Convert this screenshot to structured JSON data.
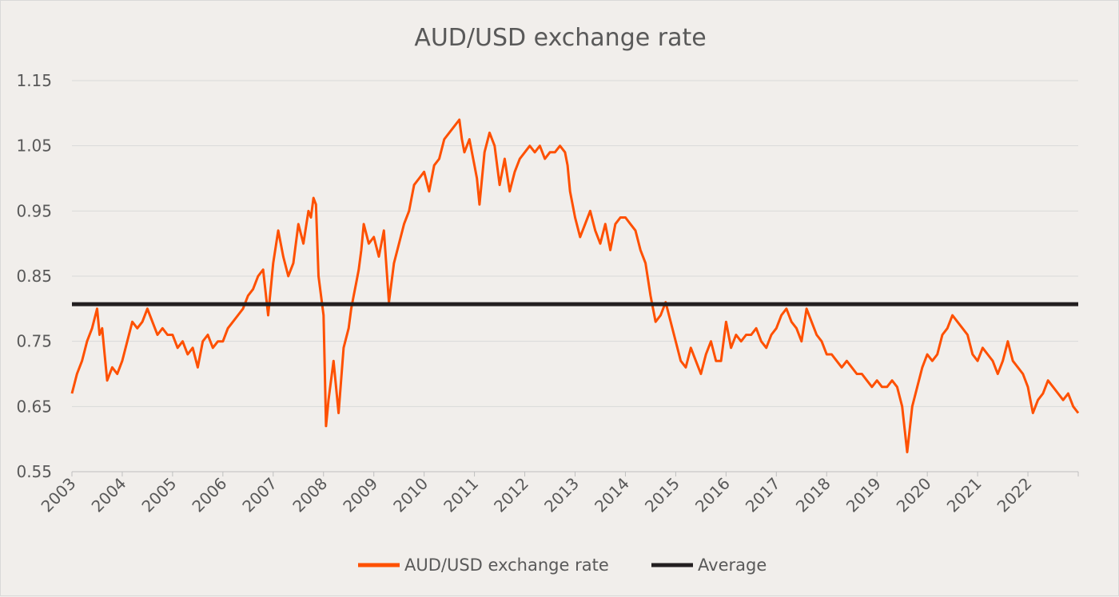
{
  "chart_data": {
    "type": "line",
    "title": "AUD/USD exchange rate",
    "xlabel": "",
    "ylabel": "",
    "ylim": [
      0.55,
      1.15
    ],
    "xlim": [
      2003,
      2023
    ],
    "y_ticks": [
      "0.55",
      "0.65",
      "0.75",
      "0.85",
      "0.95",
      "1.05",
      "1.15"
    ],
    "x_ticks": [
      "2003",
      "2004",
      "2005",
      "2006",
      "2007",
      "2008",
      "2009",
      "2010",
      "2011",
      "2012",
      "2013",
      "2014",
      "2015",
      "2016",
      "2017",
      "2018",
      "2019",
      "2020",
      "2021",
      "2022"
    ],
    "grid": true,
    "legend_position": "bottom",
    "series": [
      {
        "name": "AUD/USD exchange rate",
        "color": "#fe5000",
        "x": [
          2003.0,
          2003.1,
          2003.2,
          2003.3,
          2003.4,
          2003.5,
          2003.55,
          2003.6,
          2003.65,
          2003.7,
          2003.8,
          2003.9,
          2004.0,
          2004.1,
          2004.2,
          2004.3,
          2004.4,
          2004.5,
          2004.6,
          2004.7,
          2004.8,
          2004.9,
          2005.0,
          2005.1,
          2005.2,
          2005.3,
          2005.4,
          2005.5,
          2005.6,
          2005.7,
          2005.8,
          2005.9,
          2006.0,
          2006.1,
          2006.2,
          2006.3,
          2006.4,
          2006.5,
          2006.6,
          2006.7,
          2006.8,
          2006.9,
          2007.0,
          2007.1,
          2007.2,
          2007.3,
          2007.4,
          2007.5,
          2007.6,
          2007.7,
          2007.75,
          2007.8,
          2007.85,
          2007.9,
          2008.0,
          2008.05,
          2008.1,
          2008.2,
          2008.3,
          2008.4,
          2008.5,
          2008.55,
          2008.6,
          2008.65,
          2008.7,
          2008.75,
          2008.8,
          2008.9,
          2009.0,
          2009.1,
          2009.2,
          2009.3,
          2009.4,
          2009.5,
          2009.6,
          2009.7,
          2009.75,
          2009.8,
          2009.9,
          2010.0,
          2010.1,
          2010.2,
          2010.3,
          2010.4,
          2010.5,
          2010.6,
          2010.7,
          2010.75,
          2010.8,
          2010.9,
          2011.0,
          2011.05,
          2011.1,
          2011.2,
          2011.3,
          2011.4,
          2011.5,
          2011.6,
          2011.7,
          2011.8,
          2011.9,
          2012.0,
          2012.1,
          2012.2,
          2012.3,
          2012.4,
          2012.5,
          2012.6,
          2012.7,
          2012.8,
          2012.85,
          2012.9,
          2013.0,
          2013.1,
          2013.2,
          2013.3,
          2013.4,
          2013.5,
          2013.6,
          2013.7,
          2013.8,
          2013.9,
          2014.0,
          2014.1,
          2014.2,
          2014.3,
          2014.4,
          2014.5,
          2014.6,
          2014.7,
          2014.8,
          2014.9,
          2015.0,
          2015.1,
          2015.2,
          2015.3,
          2015.4,
          2015.5,
          2015.6,
          2015.7,
          2015.8,
          2015.9,
          2016.0,
          2016.1,
          2016.2,
          2016.3,
          2016.4,
          2016.5,
          2016.6,
          2016.7,
          2016.8,
          2016.9,
          2017.0,
          2017.1,
          2017.2,
          2017.3,
          2017.4,
          2017.5,
          2017.6,
          2017.7,
          2017.8,
          2017.9,
          2018.0,
          2018.1,
          2018.2,
          2018.3,
          2018.4,
          2018.5,
          2018.6,
          2018.7,
          2018.8,
          2018.9,
          2019.0,
          2019.1,
          2019.2,
          2019.3,
          2019.4,
          2019.5,
          2019.6,
          2019.7,
          2019.8,
          2019.9,
          2020.0,
          2020.1,
          2020.2,
          2020.3,
          2020.4,
          2020.5,
          2020.6,
          2020.7,
          2020.8,
          2020.9,
          2021.0,
          2021.1,
          2021.2,
          2021.3,
          2021.4,
          2021.5,
          2021.6,
          2021.7,
          2021.8,
          2021.9,
          2022.0,
          2022.1,
          2022.2,
          2022.3,
          2022.4,
          2022.5,
          2022.6,
          2022.7,
          2022.8,
          2022.9,
          2023.0
        ],
        "values": [
          0.67,
          0.7,
          0.72,
          0.75,
          0.77,
          0.8,
          0.76,
          0.77,
          0.73,
          0.69,
          0.71,
          0.7,
          0.72,
          0.75,
          0.78,
          0.77,
          0.78,
          0.8,
          0.78,
          0.76,
          0.77,
          0.76,
          0.76,
          0.74,
          0.75,
          0.73,
          0.74,
          0.71,
          0.75,
          0.76,
          0.74,
          0.75,
          0.75,
          0.77,
          0.78,
          0.79,
          0.8,
          0.82,
          0.83,
          0.85,
          0.86,
          0.79,
          0.87,
          0.92,
          0.88,
          0.85,
          0.87,
          0.93,
          0.9,
          0.95,
          0.94,
          0.97,
          0.96,
          0.85,
          0.79,
          0.62,
          0.66,
          0.72,
          0.64,
          0.74,
          0.77,
          0.8,
          0.82,
          0.84,
          0.86,
          0.89,
          0.93,
          0.9,
          0.91,
          0.88,
          0.92,
          0.81,
          0.87,
          0.9,
          0.93,
          0.95,
          0.97,
          0.99,
          1.0,
          1.01,
          0.98,
          1.02,
          1.03,
          1.06,
          1.07,
          1.08,
          1.09,
          1.06,
          1.04,
          1.06,
          1.02,
          1.0,
          0.96,
          1.04,
          1.07,
          1.05,
          0.99,
          1.03,
          0.98,
          1.01,
          1.03,
          1.04,
          1.05,
          1.04,
          1.05,
          1.03,
          1.04,
          1.04,
          1.05,
          1.04,
          1.02,
          0.98,
          0.94,
          0.91,
          0.93,
          0.95,
          0.92,
          0.9,
          0.93,
          0.89,
          0.93,
          0.94,
          0.94,
          0.93,
          0.92,
          0.89,
          0.87,
          0.82,
          0.78,
          0.79,
          0.81,
          0.78,
          0.75,
          0.72,
          0.71,
          0.74,
          0.72,
          0.7,
          0.73,
          0.75,
          0.72,
          0.72,
          0.78,
          0.74,
          0.76,
          0.75,
          0.76,
          0.76,
          0.77,
          0.75,
          0.74,
          0.76,
          0.77,
          0.79,
          0.8,
          0.78,
          0.77,
          0.75,
          0.8,
          0.78,
          0.76,
          0.75,
          0.73,
          0.73,
          0.72,
          0.71,
          0.72,
          0.71,
          0.7,
          0.7,
          0.69,
          0.68,
          0.69,
          0.68,
          0.68,
          0.69,
          0.68,
          0.65,
          0.58,
          0.65,
          0.68,
          0.71,
          0.73,
          0.72,
          0.73,
          0.76,
          0.77,
          0.79,
          0.78,
          0.77,
          0.76,
          0.73,
          0.72,
          0.74,
          0.73,
          0.72,
          0.7,
          0.72,
          0.75,
          0.72,
          0.71,
          0.7,
          0.68,
          0.64,
          0.66,
          0.67,
          0.69,
          0.68,
          0.67,
          0.66,
          0.67,
          0.65,
          0.64
        ]
      },
      {
        "name": "Average",
        "color": "#231f20",
        "x": [
          2003.0,
          2023.0
        ],
        "values": [
          0.807,
          0.807
        ]
      }
    ]
  }
}
